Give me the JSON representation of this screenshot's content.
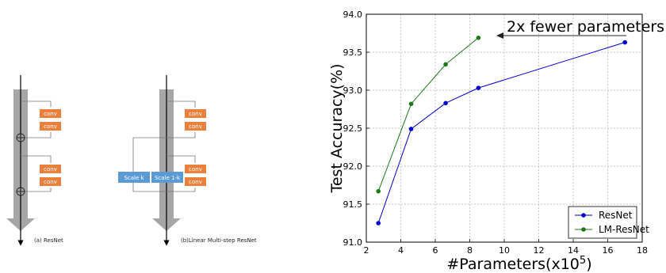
{
  "left_panel": {
    "resnet": {
      "blocks": [
        "conv",
        "conv",
        "conv",
        "conv"
      ],
      "caption": "(a) ResNet"
    },
    "lm_resnet": {
      "blocks": [
        "conv",
        "conv",
        "conv",
        "conv"
      ],
      "scale_k": "Scale k",
      "scale_1k": "Scale 1-k",
      "caption": "(b)Linear Multi-step ResNet"
    },
    "colors": {
      "conv": "#e9813d",
      "scale": "#5b9bd5",
      "shaft": "#a6a6a6"
    }
  },
  "chart_data": {
    "type": "line",
    "xlabel_base": "#Parameters(x10",
    "xlabel_exp": "5",
    "xlabel_close": ")",
    "ylabel": "Test Accuracy(%)",
    "xlim": [
      2,
      18
    ],
    "ylim": [
      91.0,
      94.0
    ],
    "xticks": [
      "2",
      "4",
      "6",
      "8",
      "10",
      "12",
      "14",
      "16",
      "18"
    ],
    "yticks": [
      "91.0",
      "91.5",
      "92.0",
      "92.5",
      "93.0",
      "93.5",
      "94.0"
    ],
    "grid": true,
    "legend_position": "lower-right",
    "annotation": "2x fewer parameters",
    "series": [
      {
        "name": "ResNet",
        "color": "#0000cc",
        "x": [
          2.7,
          4.6,
          6.6,
          8.5,
          17.0
        ],
        "y": [
          91.25,
          92.49,
          92.83,
          93.03,
          93.63
        ]
      },
      {
        "name": "LM-ResNet",
        "color": "#1a7a1a",
        "x": [
          2.7,
          4.6,
          6.6,
          8.5
        ],
        "y": [
          91.67,
          92.82,
          93.34,
          93.69
        ]
      }
    ]
  }
}
